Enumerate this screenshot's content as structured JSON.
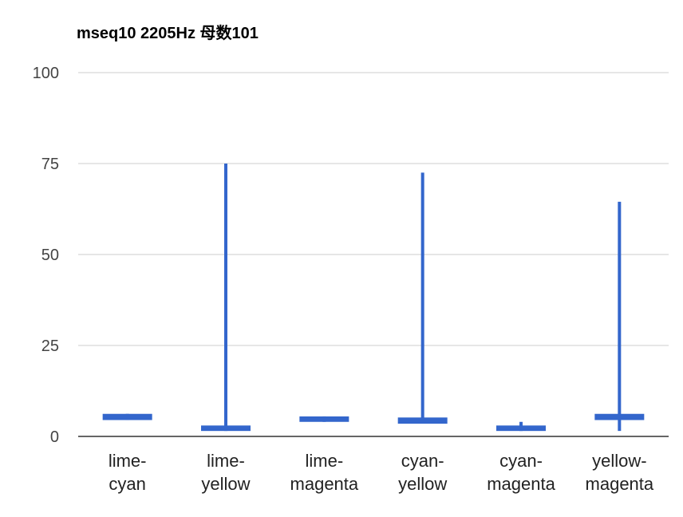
{
  "chart_data": {
    "type": "candlestick",
    "title": "mseq10 2205Hz 母数101",
    "xlabel": "",
    "ylabel": "",
    "ylim": [
      0,
      100
    ],
    "yticks": [
      {
        "value": 0,
        "label": "0"
      },
      {
        "value": 25,
        "label": "25"
      },
      {
        "value": 50,
        "label": "50"
      },
      {
        "value": 75,
        "label": "75"
      },
      {
        "value": 100,
        "label": "100"
      }
    ],
    "grid": true,
    "legend": "none",
    "color": "#3366cc",
    "categories": [
      {
        "line1": "lime-",
        "line2": "cyan"
      },
      {
        "line1": "lime-",
        "line2": "yellow"
      },
      {
        "line1": "lime-",
        "line2": "magenta"
      },
      {
        "line1": "cyan-",
        "line2": "yellow"
      },
      {
        "line1": "cyan-",
        "line2": "magenta"
      },
      {
        "line1": "yellow-",
        "line2": "magenta"
      }
    ],
    "series": [
      {
        "low": 4.5,
        "open": 4.5,
        "close": 6.2,
        "high": 6.2
      },
      {
        "low": 1.5,
        "open": 1.5,
        "close": 3.0,
        "high": 75.0
      },
      {
        "low": 4.0,
        "open": 4.0,
        "close": 5.5,
        "high": 5.5
      },
      {
        "low": 3.5,
        "open": 3.5,
        "close": 5.2,
        "high": 72.5
      },
      {
        "low": 1.5,
        "open": 1.5,
        "close": 3.0,
        "high": 4.0
      },
      {
        "low": 1.5,
        "open": 4.5,
        "close": 6.2,
        "high": 64.5
      }
    ]
  }
}
